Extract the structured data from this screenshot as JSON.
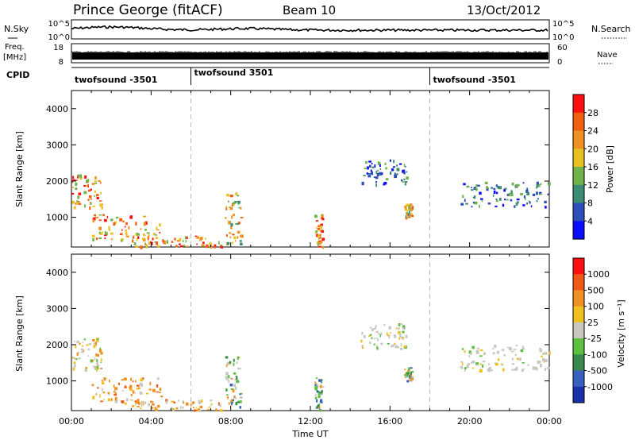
{
  "header": {
    "station": "Prince George (fitACF)",
    "beam": "Beam 10",
    "date": "13/Oct/2012"
  },
  "strips": {
    "nsky_label": "N.Sky",
    "nsky_tick_top": "10^5",
    "nsky_tick_bottom": "10^0",
    "nsearch_label": "N.Search",
    "nsearch_tick_top": "10^5",
    "nsearch_tick_bottom": "10^0",
    "freq_label": "Freq.",
    "freq_unit": "[MHz]",
    "freq_tick_top": "18",
    "freq_tick_bottom": "8",
    "nave_label": "Nave",
    "nave_tick_top": "60",
    "nave_tick_bottom": "0",
    "cpid_label": "CPID",
    "cpid_segments": [
      {
        "label": "twofsound -3501",
        "start_hour": 0,
        "end_hour": 6
      },
      {
        "label": "twofsound 3501",
        "start_hour": 6,
        "end_hour": 18
      },
      {
        "label": "twofsound -3501",
        "start_hour": 18,
        "end_hour": 24
      }
    ]
  },
  "chart_data": [
    {
      "type": "heatmap",
      "panel": "power",
      "ylabel": "Slant Range [km]",
      "xlabel": "Time UT",
      "x_ticks": [
        "00:00",
        "04:00",
        "08:00",
        "12:00",
        "16:00",
        "20:00",
        "00:00"
      ],
      "x_range_hours": [
        0,
        24
      ],
      "y_ticks": [
        "1000",
        "2000",
        "3000",
        "4000"
      ],
      "y_tick_values": [
        1000,
        2000,
        3000,
        4000
      ],
      "ylim": [
        180,
        4500
      ],
      "colorbar": {
        "label": "Power [dB]",
        "ticks": [
          "4",
          "8",
          "12",
          "16",
          "20",
          "24",
          "28"
        ],
        "colors": [
          "#0a0aff",
          "#2f4fb8",
          "#3b8c73",
          "#6fb34a",
          "#e8c020",
          "#f09020",
          "#f06010",
          "#ff1010"
        ]
      },
      "features": [
        {
          "t_start": 0.0,
          "t_end": 1.5,
          "r_start": 1300,
          "r_end": 2200,
          "level": "high"
        },
        {
          "t_start": 1.0,
          "t_end": 4.5,
          "r_start": 400,
          "r_end": 1100,
          "level": "high"
        },
        {
          "t_start": 3.0,
          "t_end": 7.5,
          "r_start": 200,
          "r_end": 500,
          "level": "high"
        },
        {
          "t_start": 7.7,
          "t_end": 8.5,
          "r_start": 300,
          "r_end": 1700,
          "level": "mid"
        },
        {
          "t_start": 12.2,
          "t_end": 12.6,
          "r_start": 200,
          "r_end": 1100,
          "level": "high"
        },
        {
          "t_start": 14.5,
          "t_end": 16.8,
          "r_start": 1900,
          "r_end": 2600,
          "level": "low"
        },
        {
          "t_start": 16.7,
          "t_end": 17.1,
          "r_start": 1000,
          "r_end": 1400,
          "level": "mid"
        },
        {
          "t_start": 19.5,
          "t_end": 24.0,
          "r_start": 1300,
          "r_end": 2000,
          "level": "low"
        }
      ]
    },
    {
      "type": "heatmap",
      "panel": "velocity",
      "ylabel": "Slant Range [km]",
      "xlabel": "Time UT",
      "x_ticks": [
        "00:00",
        "04:00",
        "08:00",
        "12:00",
        "16:00",
        "20:00",
        "00:00"
      ],
      "x_range_hours": [
        0,
        24
      ],
      "y_ticks": [
        "1000",
        "2000",
        "3000",
        "4000"
      ],
      "y_tick_values": [
        1000,
        2000,
        3000,
        4000
      ],
      "ylim": [
        180,
        4500
      ],
      "colorbar": {
        "label": "Velocity [m s⁻¹]",
        "ticks": [
          "1000",
          "500",
          "100",
          "25",
          "-25",
          "-100",
          "-500",
          "-1000"
        ],
        "colors": [
          "#1a30a8",
          "#3860c0",
          "#3a8a50",
          "#5ec040",
          "#c8c8c0",
          "#f0c020",
          "#f09020",
          "#f05818",
          "#ff1010"
        ]
      },
      "features": [
        {
          "t_start": 0.0,
          "t_end": 1.5,
          "r_start": 1300,
          "r_end": 2200,
          "level": "toward"
        },
        {
          "t_start": 1.0,
          "t_end": 4.5,
          "r_start": 400,
          "r_end": 1100,
          "level": "away"
        },
        {
          "t_start": 3.0,
          "t_end": 7.5,
          "r_start": 200,
          "r_end": 500,
          "level": "away"
        },
        {
          "t_start": 7.7,
          "t_end": 8.5,
          "r_start": 300,
          "r_end": 1700,
          "level": "mixed"
        },
        {
          "t_start": 12.2,
          "t_end": 12.6,
          "r_start": 200,
          "r_end": 1100,
          "level": "mixed"
        },
        {
          "t_start": 14.5,
          "t_end": 16.8,
          "r_start": 1900,
          "r_end": 2600,
          "level": "ground"
        },
        {
          "t_start": 16.7,
          "t_end": 17.1,
          "r_start": 1000,
          "r_end": 1400,
          "level": "mixed"
        },
        {
          "t_start": 19.5,
          "t_end": 24.0,
          "r_start": 1300,
          "r_end": 2000,
          "level": "ground"
        }
      ]
    }
  ]
}
